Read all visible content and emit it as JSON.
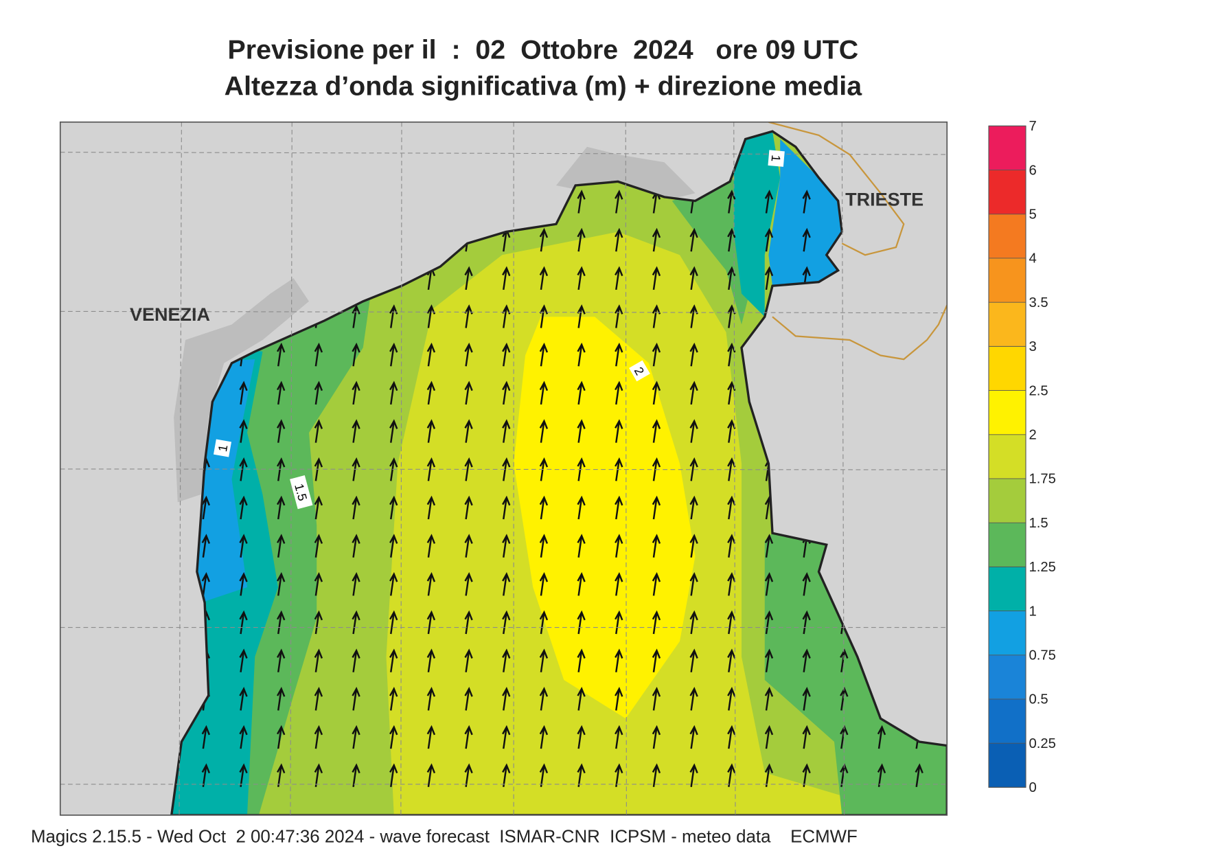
{
  "header": {
    "title_line1": "Previsione per il  :  02  Ottobre  2024   ore 09 UTC",
    "title_line2": "Altezza d’onda significativa (m) + direzione media"
  },
  "map": {
    "places": [
      "VENEZIA",
      "TRIESTE"
    ],
    "contour_labels": [
      "1",
      "1.5",
      "2",
      "1"
    ]
  },
  "colorbar": {
    "ticks": [
      0,
      0.25,
      0.5,
      0.75,
      1,
      1.25,
      1.5,
      1.75,
      2,
      2.5,
      3,
      3.5,
      4,
      5,
      6,
      7
    ],
    "colors": [
      "#0a5fb4",
      "#1170c8",
      "#1a84d8",
      "#12a0e2",
      "#00b0a8",
      "#5cb85a",
      "#a4cc3c",
      "#d4de26",
      "#fff200",
      "#ffd700",
      "#fbb71c",
      "#f7941d",
      "#f47a20",
      "#ec2a2a",
      "#ec1c5c"
    ]
  },
  "footer": "Magics 2.15.5 - Wed Oct  2 00:47:36 2024 - wave forecast  ISMAR-CNR  ICPSM - meteo data    ECMWF"
}
